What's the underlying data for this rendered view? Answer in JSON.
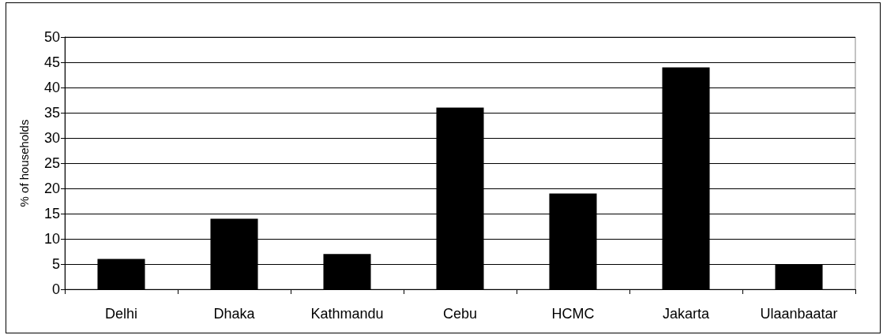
{
  "chart_data": {
    "type": "bar",
    "ylabel": "% of households",
    "categories": [
      "Delhi",
      "Dhaka",
      "Kathmandu",
      "Cebu",
      "HCMC",
      "Jakarta",
      "Ulaanbaatar"
    ],
    "values": [
      6,
      14,
      7,
      36,
      19,
      44,
      5
    ],
    "color": "#000000",
    "ylim": [
      0,
      50
    ],
    "yticks": [
      0,
      5,
      10,
      15,
      20,
      25,
      30,
      35,
      40,
      45,
      50
    ],
    "grid": "y"
  }
}
